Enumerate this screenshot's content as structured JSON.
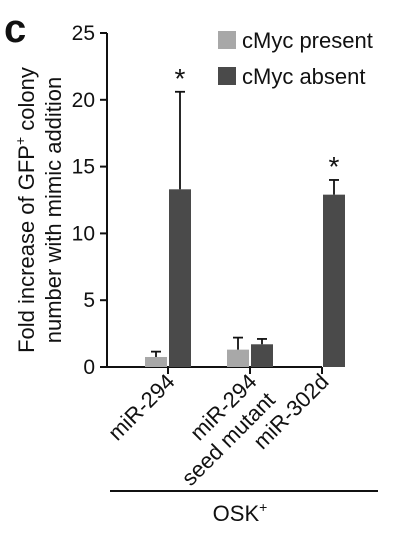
{
  "panel_label": "c",
  "chart_data": {
    "type": "bar",
    "categories": [
      "miR-294",
      "miR-294 seed mutant",
      "miR-302d"
    ],
    "category_lines": [
      [
        "miR-294"
      ],
      [
        "miR-294",
        "seed mutant"
      ],
      [
        "miR-302d"
      ]
    ],
    "series": [
      {
        "name": "cMyc present",
        "values": [
          0.75,
          1.3,
          null
        ],
        "errors": [
          0.4,
          0.9,
          null
        ],
        "color": "#a8a8a8"
      },
      {
        "name": "cMyc absent",
        "values": [
          13.3,
          1.7,
          12.9
        ],
        "errors": [
          7.3,
          0.4,
          1.1
        ],
        "color": "#4a4a4a"
      }
    ],
    "significance": [
      "*",
      "",
      "*"
    ],
    "ylabel_lines": [
      "Fold increase of GFP",
      "+",
      " colony",
      "number with mimic addition"
    ],
    "ylim": [
      0,
      25
    ],
    "yticks": [
      "0",
      "5",
      "10",
      "15",
      "20",
      "25"
    ],
    "group_label": "OSK",
    "group_label_sup": "+",
    "grid": false,
    "legend_position": "top-right"
  }
}
